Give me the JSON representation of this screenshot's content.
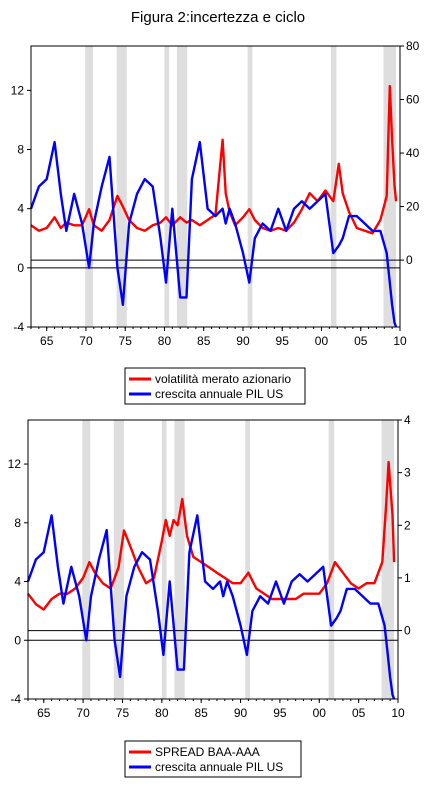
{
  "page": {
    "title": "Figura 2:incertezza e ciclo"
  },
  "chart_data": [
    {
      "type": "line",
      "recessions": [
        [
          1969.9,
          1970.9
        ],
        [
          1973.9,
          1975.2
        ],
        [
          1980.0,
          1980.6
        ],
        [
          1981.6,
          1982.9
        ],
        [
          1990.6,
          1991.2
        ],
        [
          2001.2,
          2001.9
        ],
        [
          2007.9,
          2009.5
        ]
      ],
      "xlim": [
        1963,
        2010
      ],
      "x_ticks": [
        "65",
        "70",
        "75",
        "80",
        "85",
        "90",
        "95",
        "00",
        "05",
        "10"
      ],
      "ylim_left": [
        -4,
        15
      ],
      "ylim_right": [
        -25,
        80
      ],
      "left_ticks": [
        "-4",
        "0",
        "4",
        "8",
        "12"
      ],
      "right_ticks": [
        "0",
        "20",
        "40",
        "60",
        "80"
      ],
      "series": [
        {
          "name": "volatilità merato azionario",
          "axis": "right",
          "color": "#ff0000",
          "x": [
            1963,
            1964,
            1965,
            1966,
            1966.8,
            1967.5,
            1968.5,
            1969.5,
            1970.4,
            1971,
            1972,
            1973,
            1974,
            1974.7,
            1975.5,
            1976.5,
            1977.5,
            1978.5,
            1979.5,
            1980.2,
            1981,
            1982,
            1982.8,
            1983.5,
            1984.5,
            1985.5,
            1986.5,
            1987.4,
            1987.8,
            1988.3,
            1989,
            1990,
            1990.8,
            1991.5,
            1992.5,
            1993.5,
            1994.5,
            1995.5,
            1996.5,
            1997.5,
            1998.5,
            1999.5,
            2000.5,
            2001.5,
            2002.2,
            2002.7,
            2003.5,
            2004.5,
            2005.5,
            2006.5,
            2007.5,
            2008.3,
            2008.7,
            2009.0,
            2009.3,
            2009.5
          ],
          "y": [
            13,
            11,
            12,
            16,
            12,
            14,
            13,
            13,
            19,
            13,
            11,
            15,
            24,
            20,
            15,
            12,
            11,
            13,
            14,
            16,
            13,
            16,
            14,
            15,
            13,
            15,
            17,
            45,
            25,
            18,
            13,
            16,
            19,
            15,
            12,
            11,
            12,
            11,
            14,
            19,
            25,
            22,
            26,
            22,
            36,
            25,
            18,
            12,
            11,
            10,
            15,
            24,
            65,
            45,
            28,
            22
          ]
        },
        {
          "name": "crescita annuale PIL US",
          "axis": "left",
          "color": "#0000ff",
          "x": [
            1963,
            1964,
            1965,
            1966,
            1966.8,
            1967.5,
            1968.5,
            1969.5,
            1970.4,
            1971,
            1972,
            1973,
            1974,
            1974.7,
            1975.5,
            1976.5,
            1977.5,
            1978.5,
            1979.5,
            1980.2,
            1981,
            1982,
            1982.8,
            1983.5,
            1984.5,
            1985.5,
            1986.5,
            1987.4,
            1987.8,
            1988.3,
            1989,
            1990,
            1990.8,
            1991.5,
            1992.5,
            1993.5,
            1994.5,
            1995.5,
            1996.5,
            1997.5,
            1998.5,
            1999.5,
            2000.5,
            2001.5,
            2002.2,
            2002.7,
            2003.5,
            2004.5,
            2005.5,
            2006.5,
            2007.5,
            2008.3,
            2008.7,
            2009.0,
            2009.3,
            2009.5
          ],
          "y": [
            4,
            5.5,
            6,
            8.5,
            5,
            2.5,
            5,
            3,
            0,
            3,
            5.5,
            7.5,
            0,
            -2.5,
            3,
            5,
            6,
            5.5,
            2,
            -1,
            4,
            -2,
            -2,
            6,
            8.5,
            4,
            3.5,
            4,
            3,
            4,
            3,
            1,
            -1,
            2,
            3,
            2.5,
            4,
            2.5,
            4,
            4.5,
            4,
            4.5,
            5,
            1,
            1.5,
            2,
            3.5,
            3.5,
            3,
            2.5,
            2.5,
            1,
            -1,
            -2.5,
            -3.7,
            -4
          ]
        }
      ]
    },
    {
      "type": "line",
      "recessions": [
        [
          1969.9,
          1970.9
        ],
        [
          1973.9,
          1975.2
        ],
        [
          1980.0,
          1980.6
        ],
        [
          1981.6,
          1982.9
        ],
        [
          1990.6,
          1991.2
        ],
        [
          2001.2,
          2001.9
        ],
        [
          2007.9,
          2009.5
        ]
      ],
      "xlim": [
        1963,
        2010
      ],
      "x_ticks": [
        "65",
        "70",
        "75",
        "80",
        "85",
        "90",
        "95",
        "00",
        "05",
        "10"
      ],
      "ylim_left": [
        -4,
        15
      ],
      "ylim_right": [
        -1.3,
        4
      ],
      "left_ticks": [
        "-4",
        "0",
        "4",
        "8",
        "12"
      ],
      "right_ticks": [
        "0",
        "1",
        "2",
        "3",
        "4"
      ],
      "series": [
        {
          "name": "SPREAD BAA-AAA",
          "axis": "right",
          "color": "#ff0000",
          "x": [
            1963,
            1964,
            1965,
            1966,
            1967,
            1968,
            1969,
            1970,
            1970.8,
            1971.5,
            1972.5,
            1973.5,
            1974.5,
            1975.2,
            1976,
            1977,
            1978,
            1979,
            1980,
            1980.5,
            1981,
            1981.5,
            1982,
            1982.6,
            1983.2,
            1984,
            1985,
            1986,
            1987,
            1988,
            1989,
            1990,
            1991,
            1992,
            1993,
            1994,
            1995,
            1996,
            1997,
            1998,
            1999,
            2000,
            2001,
            2002,
            2003,
            2004,
            2005,
            2006,
            2007,
            2008,
            2008.5,
            2008.8,
            2009.0,
            2009.3,
            2009.5
          ],
          "y": [
            0.7,
            0.5,
            0.4,
            0.6,
            0.7,
            0.7,
            0.8,
            1.0,
            1.3,
            1.1,
            0.9,
            0.8,
            1.2,
            1.9,
            1.6,
            1.2,
            0.9,
            1.0,
            1.7,
            2.1,
            1.8,
            2.1,
            2.0,
            2.5,
            1.8,
            1.4,
            1.3,
            1.2,
            1.1,
            1.0,
            0.9,
            0.9,
            1.1,
            0.8,
            0.7,
            0.6,
            0.6,
            0.6,
            0.6,
            0.7,
            0.7,
            0.7,
            0.9,
            1.3,
            1.1,
            0.9,
            0.8,
            0.9,
            0.9,
            1.3,
            2.4,
            3.2,
            2.8,
            2.2,
            1.3
          ]
        },
        {
          "name": "crescita annuale PIL US",
          "axis": "left",
          "color": "#0000ff",
          "x": [
            1963,
            1964,
            1965,
            1966,
            1966.8,
            1967.5,
            1968.5,
            1969.5,
            1970.4,
            1971,
            1972,
            1973,
            1974,
            1974.7,
            1975.5,
            1976.5,
            1977.5,
            1978.5,
            1979.5,
            1980.2,
            1981,
            1982,
            1982.8,
            1983.5,
            1984.5,
            1985.5,
            1986.5,
            1987.4,
            1987.8,
            1988.3,
            1989,
            1990,
            1990.8,
            1991.5,
            1992.5,
            1993.5,
            1994.5,
            1995.5,
            1996.5,
            1997.5,
            1998.5,
            1999.5,
            2000.5,
            2001.5,
            2002.2,
            2002.7,
            2003.5,
            2004.5,
            2005.5,
            2006.5,
            2007.5,
            2008.3,
            2008.7,
            2009.0,
            2009.3,
            2009.5
          ],
          "y": [
            4,
            5.5,
            6,
            8.5,
            5,
            2.5,
            5,
            3,
            0,
            3,
            5.5,
            7.5,
            0,
            -2.5,
            3,
            5,
            6,
            5.5,
            2,
            -1,
            4,
            -2,
            -2,
            6,
            8.5,
            4,
            3.5,
            4,
            3,
            4,
            3,
            1,
            -1,
            2,
            3,
            2.5,
            4,
            2.5,
            4,
            4.5,
            4,
            4.5,
            5,
            1,
            1.5,
            2,
            3.5,
            3.5,
            3,
            2.5,
            2.5,
            1,
            -1,
            -2.5,
            -3.7,
            -4
          ]
        }
      ]
    }
  ]
}
